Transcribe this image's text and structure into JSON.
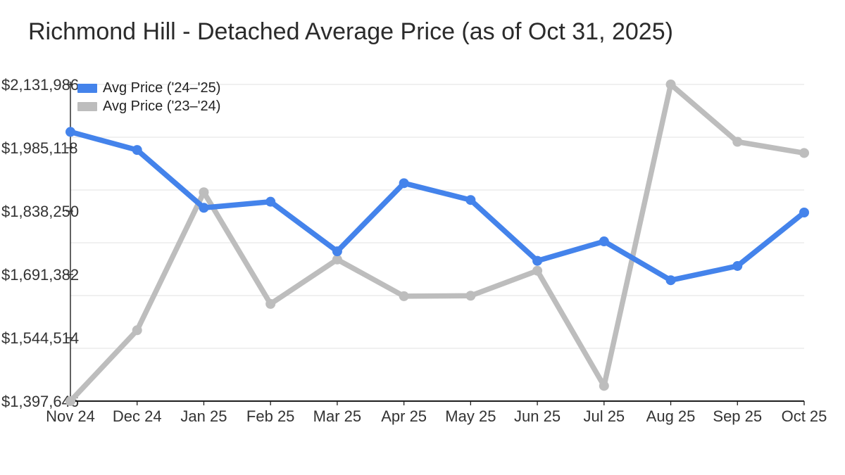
{
  "title": "Richmond Hill - Detached Average Price (as of Oct 31, 2025)",
  "legend": {
    "items": [
      {
        "label": "Avg Price ('24–'25)",
        "color": "#4483eb"
      },
      {
        "label": "Avg Price ('23–'24)",
        "color": "#bdbdbd"
      }
    ]
  },
  "chart_data": {
    "type": "line",
    "title": "Richmond Hill - Detached Average Price (as of Oct 31, 2025)",
    "categories": [
      "Nov 24",
      "Dec 24",
      "Jan 25",
      "Feb 25",
      "Mar 25",
      "Apr 25",
      "May 25",
      "Jun 25",
      "Jul 25",
      "Aug 25",
      "Sep 25",
      "Oct 25"
    ],
    "series": [
      {
        "name": "Avg Price ('24–'25)",
        "color": "#4483eb",
        "values": [
          2022000,
          1980000,
          1846000,
          1860000,
          1745000,
          1903000,
          1864000,
          1723000,
          1768000,
          1678000,
          1711000,
          1835000
        ]
      },
      {
        "name": "Avg Price ('23–'24)",
        "color": "#bdbdbd",
        "values": [
          1397646,
          1562000,
          1882000,
          1623000,
          1726000,
          1641000,
          1642000,
          1700000,
          1433000,
          2131986,
          1999000,
          1973000
        ]
      }
    ],
    "xlabel": "",
    "ylabel": "",
    "ylim": [
      1397646,
      2131986
    ],
    "y_ticks": [
      {
        "value": 2131986,
        "label": "$2,131,986"
      },
      {
        "value": 1985118,
        "label": "$1,985,118"
      },
      {
        "value": 1838250,
        "label": "$1,838,250"
      },
      {
        "value": 1691382,
        "label": "$1,691,382"
      },
      {
        "value": 1544514,
        "label": "$1,544,514"
      },
      {
        "value": 1397646,
        "label": "$1,397,646"
      }
    ],
    "grid": true,
    "gridline_count": 7,
    "legend_position": "top-left"
  },
  "style": {
    "background": "#ffffff",
    "grid_color": "#e7e7e7",
    "axis_color": "#1f1f1f",
    "tick_text_color": "#333333",
    "title_color": "#2b2b2b",
    "legend_text_color": "#222222"
  }
}
